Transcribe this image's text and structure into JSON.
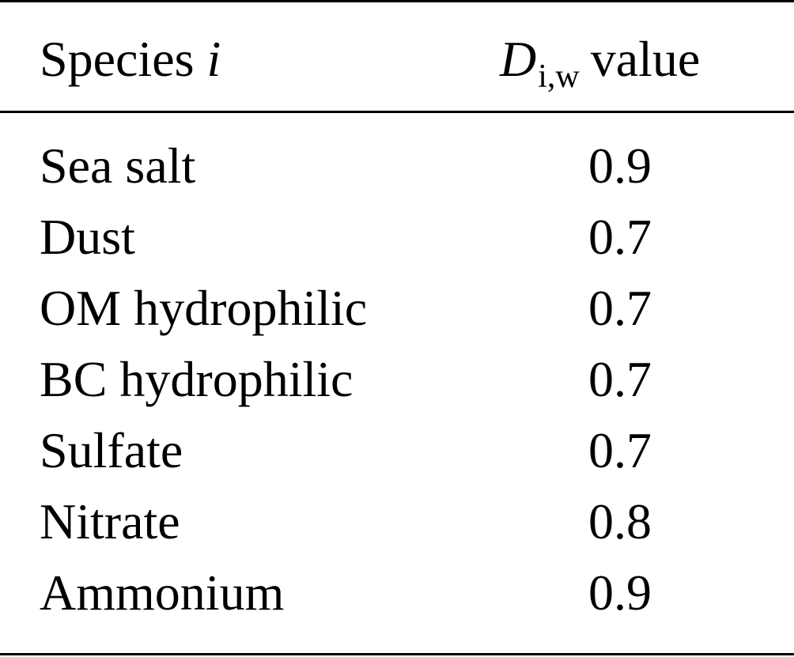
{
  "header": {
    "species_label": "Species ",
    "species_var": "i",
    "value_symbol": "D",
    "value_subscript": "i,w",
    "value_label": "value"
  },
  "rows": [
    {
      "species": "Sea salt",
      "value": "0.9"
    },
    {
      "species": "Dust",
      "value": "0.7"
    },
    {
      "species": "OM hydrophilic",
      "value": "0.7"
    },
    {
      "species": "BC hydrophilic",
      "value": "0.7"
    },
    {
      "species": "Sulfate",
      "value": "0.7"
    },
    {
      "species": "Nitrate",
      "value": "0.8"
    },
    {
      "species": "Ammonium",
      "value": "0.9"
    }
  ]
}
